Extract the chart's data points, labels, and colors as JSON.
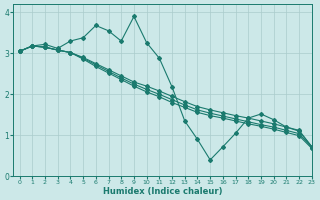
{
  "bg_color": "#cce8e8",
  "line_color": "#1a7a6e",
  "grid_color": "#aacccc",
  "xlabel": "Humidex (Indice chaleur)",
  "xlim": [
    -0.5,
    23
  ],
  "ylim": [
    0,
    4.2
  ],
  "yticks": [
    0,
    1,
    2,
    3,
    4
  ],
  "xticks": [
    0,
    1,
    2,
    3,
    4,
    5,
    6,
    7,
    8,
    9,
    10,
    11,
    12,
    13,
    14,
    15,
    16,
    17,
    18,
    19,
    20,
    21,
    22,
    23
  ],
  "line1": {
    "x": [
      0,
      1,
      2,
      3,
      4,
      5,
      6,
      7,
      8,
      9,
      10,
      11,
      12,
      13,
      14,
      15,
      16,
      17,
      18,
      19,
      20,
      21,
      22,
      23
    ],
    "y": [
      3.05,
      3.18,
      3.15,
      3.08,
      3.02,
      2.9,
      2.75,
      2.6,
      2.45,
      2.3,
      2.2,
      2.08,
      1.95,
      1.82,
      1.7,
      1.62,
      1.55,
      1.48,
      1.42,
      1.35,
      1.28,
      1.2,
      1.12,
      0.72
    ]
  },
  "line2": {
    "x": [
      0,
      1,
      2,
      3,
      4,
      5,
      6,
      7,
      8,
      9,
      10,
      11,
      12,
      13,
      14,
      15,
      16,
      17,
      18,
      19,
      20,
      21,
      22,
      23
    ],
    "y": [
      3.05,
      3.18,
      3.15,
      3.08,
      3.02,
      2.88,
      2.72,
      2.56,
      2.4,
      2.25,
      2.12,
      2.0,
      1.87,
      1.74,
      1.62,
      1.54,
      1.47,
      1.4,
      1.33,
      1.26,
      1.2,
      1.12,
      1.04,
      0.7
    ]
  },
  "line3": {
    "x": [
      0,
      1,
      2,
      3,
      4,
      5,
      6,
      7,
      8,
      9,
      10,
      11,
      12,
      13,
      14,
      15,
      16,
      17,
      18,
      19,
      20,
      21,
      22,
      23
    ],
    "y": [
      3.05,
      3.18,
      3.15,
      3.08,
      3.02,
      2.86,
      2.68,
      2.52,
      2.36,
      2.2,
      2.06,
      1.94,
      1.8,
      1.68,
      1.56,
      1.48,
      1.42,
      1.35,
      1.28,
      1.22,
      1.15,
      1.07,
      0.99,
      0.68
    ]
  },
  "line_spiky": {
    "x": [
      0,
      1,
      2,
      3,
      4,
      5,
      6,
      7,
      8,
      9,
      10,
      11,
      12,
      13,
      14,
      15,
      16,
      17,
      18,
      19,
      20,
      21,
      22,
      23
    ],
    "y": [
      3.05,
      3.18,
      3.22,
      3.12,
      3.3,
      3.38,
      3.68,
      3.55,
      3.3,
      3.9,
      3.26,
      2.88,
      2.18,
      1.35,
      0.9,
      0.4,
      0.72,
      1.05,
      1.42,
      1.52,
      1.38,
      1.2,
      1.1,
      0.72
    ]
  }
}
